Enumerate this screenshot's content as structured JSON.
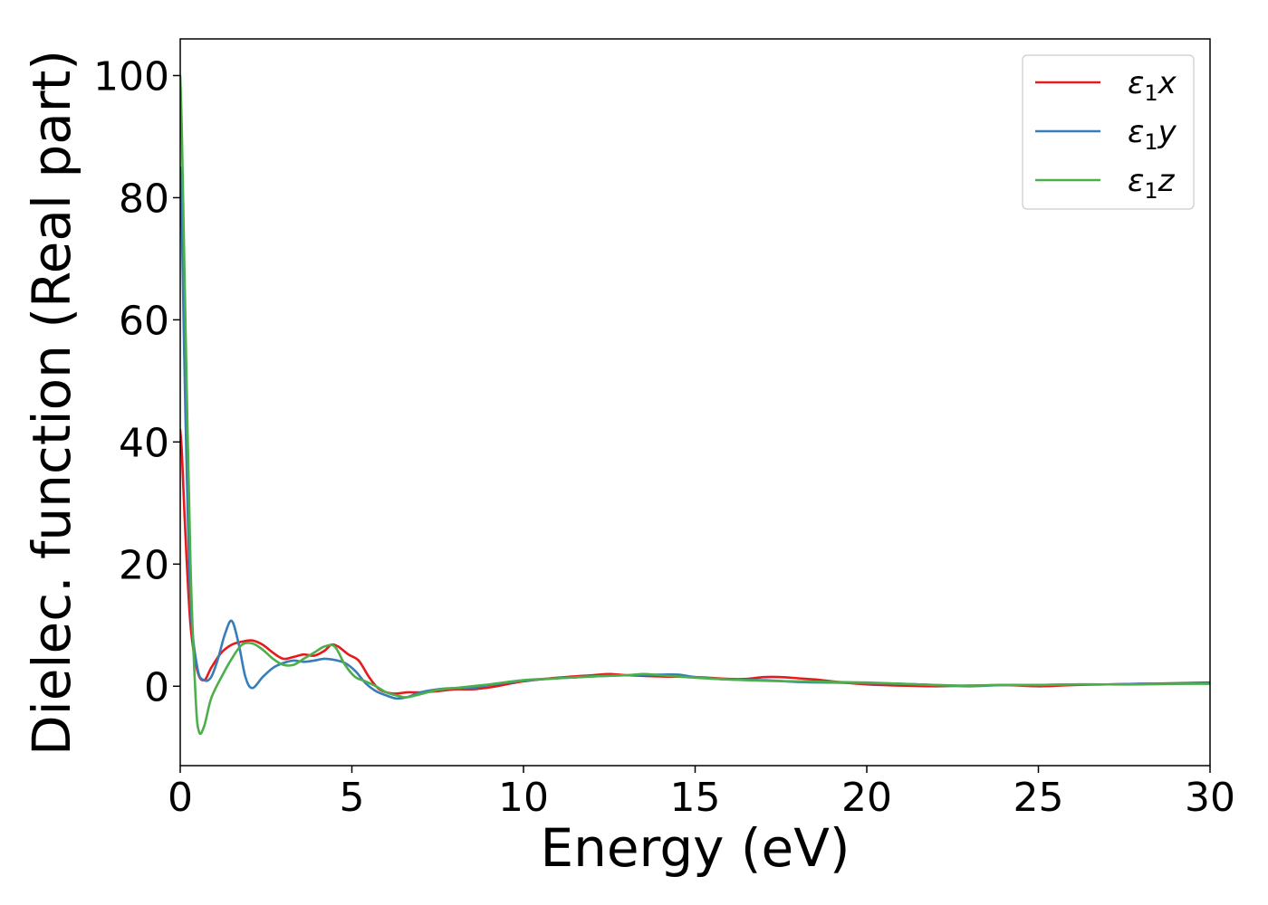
{
  "chart_data": {
    "type": "line",
    "title": "",
    "xlabel": "Energy (eV)",
    "ylabel": "Dielec. function (Real part)",
    "xlim": [
      0,
      30
    ],
    "ylim": [
      -13,
      106
    ],
    "xticks": [
      0,
      5,
      10,
      15,
      20,
      25,
      30
    ],
    "xtick_labels": [
      "0",
      "5",
      "10",
      "15",
      "20",
      "25",
      "30"
    ],
    "yticks": [
      0,
      20,
      40,
      60,
      80,
      100
    ],
    "ytick_labels": [
      "0",
      "20",
      "40",
      "60",
      "80",
      "100"
    ],
    "grid": false,
    "legend_position": "top-right",
    "series": [
      {
        "name": "ε₁x",
        "legend": {
          "base": "ε",
          "sub": "1",
          "axis": "x"
        },
        "color": "#e41a1c",
        "x": [
          0,
          0.05,
          0.15,
          0.3,
          0.5,
          0.7,
          0.9,
          1.2,
          1.5,
          1.8,
          2.1,
          2.4,
          2.7,
          3.0,
          3.3,
          3.6,
          3.9,
          4.2,
          4.4,
          4.6,
          4.9,
          5.2,
          5.5,
          5.8,
          6.2,
          6.6,
          7.0,
          7.5,
          8.0,
          8.5,
          9.0,
          10,
          11,
          12,
          12.5,
          13,
          14,
          15,
          16,
          16.5,
          17,
          17.5,
          18,
          18.5,
          19,
          20,
          21,
          22,
          23,
          24,
          25,
          26,
          27,
          28,
          29,
          30
        ],
        "y": [
          42,
          38,
          25,
          10,
          2.5,
          1.0,
          3.0,
          5.5,
          6.8,
          7.3,
          7.5,
          6.8,
          5.5,
          4.5,
          4.8,
          5.2,
          5.0,
          5.8,
          6.8,
          6.5,
          5.2,
          4.2,
          1.5,
          -0.5,
          -1.2,
          -1.0,
          -1.0,
          -0.8,
          -0.5,
          -0.5,
          -0.2,
          0.8,
          1.4,
          1.8,
          2.0,
          1.8,
          1.6,
          1.5,
          1.2,
          1.2,
          1.5,
          1.5,
          1.3,
          1.1,
          0.8,
          0.3,
          0.1,
          0.0,
          0.1,
          0.2,
          0.0,
          0.2,
          0.3,
          0.4,
          0.5,
          0.6
        ]
      },
      {
        "name": "ε₁y",
        "legend": {
          "base": "ε",
          "sub": "1",
          "axis": "y"
        },
        "color": "#377eb8",
        "x": [
          0,
          0.05,
          0.15,
          0.3,
          0.5,
          0.7,
          0.9,
          1.1,
          1.3,
          1.5,
          1.7,
          1.9,
          2.1,
          2.4,
          2.7,
          3.0,
          3.3,
          3.6,
          3.9,
          4.2,
          4.5,
          4.8,
          5.1,
          5.4,
          5.7,
          6.0,
          6.3,
          6.6,
          7.0,
          7.5,
          8.0,
          8.5,
          9.0,
          10,
          11,
          12,
          13,
          14,
          14.5,
          15,
          16,
          17,
          18,
          19,
          20,
          21,
          22,
          23,
          24,
          25,
          26,
          27,
          28,
          29,
          30
        ],
        "y": [
          85,
          75,
          45,
          14,
          3.0,
          1.0,
          1.5,
          4.5,
          8.5,
          10.7,
          7.0,
          1.5,
          -0.3,
          1.5,
          3.0,
          3.8,
          4.2,
          4.0,
          4.2,
          4.5,
          4.3,
          3.8,
          2.5,
          0.5,
          -0.8,
          -1.5,
          -2.0,
          -1.8,
          -1.0,
          -0.5,
          -0.3,
          -0.3,
          0.2,
          0.9,
          1.3,
          1.6,
          1.8,
          1.9,
          1.9,
          1.5,
          1.1,
          1.0,
          0.7,
          0.6,
          0.5,
          0.4,
          0.2,
          0.0,
          0.2,
          0.2,
          0.3,
          0.3,
          0.4,
          0.4,
          0.5
        ]
      },
      {
        "name": "ε₁z",
        "legend": {
          "base": "ε",
          "sub": "1",
          "axis": "z"
        },
        "color": "#4daf4a",
        "x": [
          0,
          0.05,
          0.15,
          0.3,
          0.45,
          0.55,
          0.7,
          0.9,
          1.2,
          1.5,
          1.8,
          2.1,
          2.4,
          2.7,
          3.0,
          3.3,
          3.6,
          3.9,
          4.2,
          4.5,
          4.8,
          5.1,
          5.4,
          5.7,
          6.0,
          6.3,
          6.6,
          7.0,
          7.5,
          8.0,
          9.0,
          10,
          11,
          12,
          13,
          13.5,
          14,
          15,
          16,
          17,
          18,
          19,
          20,
          21,
          22,
          23,
          24,
          25,
          26,
          27,
          28,
          29,
          30
        ],
        "y": [
          100,
          90,
          60,
          20,
          -2,
          -7.5,
          -6.5,
          -2.0,
          1.5,
          4.5,
          6.8,
          7.0,
          6.0,
          4.5,
          3.5,
          3.5,
          4.5,
          5.5,
          6.5,
          6.5,
          3.5,
          1.5,
          0.8,
          0.0,
          -1.0,
          -1.5,
          -1.8,
          -1.3,
          -0.6,
          -0.3,
          0.3,
          1.0,
          1.3,
          1.6,
          1.8,
          2.0,
          1.8,
          1.4,
          1.1,
          0.9,
          0.8,
          0.7,
          0.6,
          0.4,
          0.2,
          0.1,
          0.2,
          0.2,
          0.3,
          0.3,
          0.3,
          0.4,
          0.4
        ]
      }
    ]
  }
}
